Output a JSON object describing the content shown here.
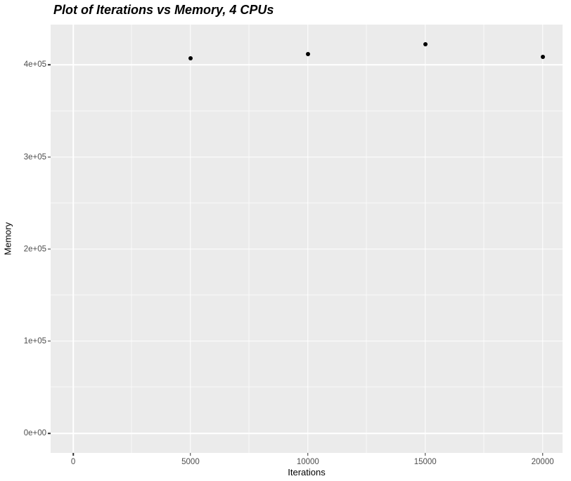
{
  "chart_data": {
    "type": "scatter",
    "title": "Plot of Iterations vs Memory, 4 CPUs",
    "xlabel": "Iterations",
    "ylabel": "Memory",
    "x": [
      5000,
      10000,
      15000,
      20000
    ],
    "y": [
      407000,
      412000,
      422000,
      409000
    ],
    "xlim": [
      -960,
      20850
    ],
    "ylim": [
      -21300,
      443700
    ],
    "x_ticks": {
      "values": [
        0,
        5000,
        10000,
        15000,
        20000
      ],
      "labels": [
        "0",
        "5000",
        "10000",
        "15000",
        "20000"
      ]
    },
    "y_ticks": {
      "values": [
        0,
        100000,
        200000,
        300000,
        400000
      ],
      "labels": [
        "0e+00",
        "1e+05",
        "2e+05",
        "3e+05",
        "4e+05"
      ]
    },
    "x_minor": [
      2500,
      7500,
      12500,
      17500
    ],
    "y_minor": [
      50000,
      150000,
      250000,
      350000
    ],
    "grid": true,
    "legend_position": "none",
    "colors": {
      "panel_bg": "#EBEBEB",
      "grid": "#FFFFFF",
      "point": "#000000",
      "tick_label": "#4D4D4D",
      "tick_mark": "#333333",
      "title": "#000000"
    }
  }
}
